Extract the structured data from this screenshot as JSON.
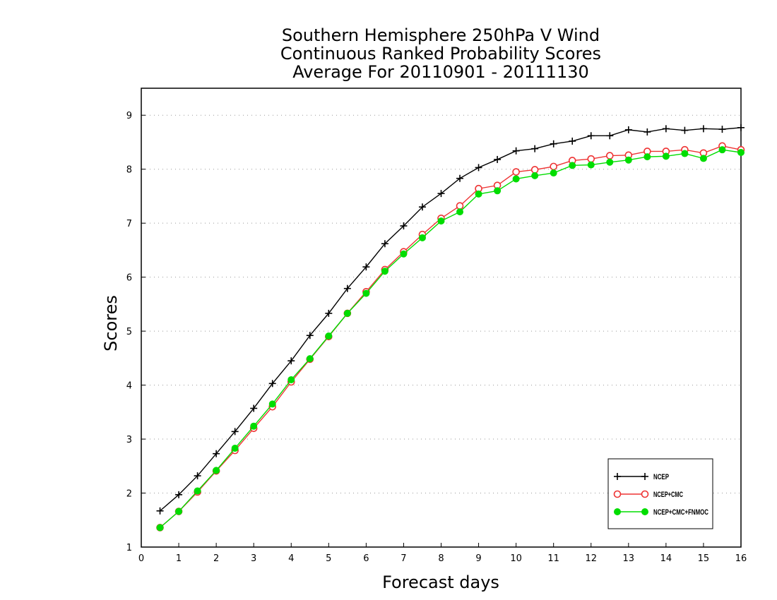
{
  "chart_data": {
    "type": "line",
    "title": [
      "Southern Hemisphere 250hPa V Wind",
      "Continuous Ranked Probability Scores",
      "Average For 20110901 - 20111130"
    ],
    "xlabel": "Forecast days",
    "ylabel": "Scores",
    "xlim": [
      0,
      16
    ],
    "ylim": [
      1,
      9.5
    ],
    "x_ticks": [
      0,
      1,
      2,
      3,
      4,
      5,
      6,
      7,
      8,
      9,
      10,
      11,
      12,
      13,
      14,
      15,
      16
    ],
    "y_ticks": [
      1,
      2,
      3,
      4,
      5,
      6,
      7,
      8,
      9
    ],
    "grid": "horizontal dotted",
    "legend_position": "bottom-right",
    "x": [
      0.5,
      1,
      1.5,
      2,
      2.5,
      3,
      3.5,
      4,
      4.5,
      5,
      5.5,
      6,
      6.5,
      7,
      7.5,
      8,
      8.5,
      9,
      9.5,
      10,
      10.5,
      11,
      11.5,
      12,
      12.5,
      13,
      13.5,
      14,
      14.5,
      15,
      15.5,
      16
    ],
    "series": [
      {
        "name": "NCEP",
        "color": "#000000",
        "marker": "plus",
        "values": [
          1.67,
          1.97,
          2.32,
          2.73,
          3.14,
          3.57,
          4.03,
          4.45,
          4.92,
          5.33,
          5.79,
          6.19,
          6.62,
          6.95,
          7.3,
          7.55,
          7.83,
          8.03,
          8.18,
          8.34,
          8.38,
          8.47,
          8.52,
          8.62,
          8.62,
          8.73,
          8.69,
          8.75,
          8.72,
          8.75,
          8.74,
          8.77
        ]
      },
      {
        "name": "NCEP+CMC",
        "color": "#ee3333",
        "marker": "open-circle",
        "values": [
          1.36,
          1.66,
          2.02,
          2.41,
          2.79,
          3.2,
          3.6,
          4.06,
          4.48,
          4.9,
          5.33,
          5.73,
          6.14,
          6.47,
          6.79,
          7.09,
          7.32,
          7.64,
          7.7,
          7.95,
          7.99,
          8.05,
          8.16,
          8.19,
          8.25,
          8.26,
          8.33,
          8.33,
          8.36,
          8.3,
          8.43,
          8.36
        ]
      },
      {
        "name": "NCEP+CMC+FNMOC",
        "color": "#00dd00",
        "marker": "filled-circle",
        "values": [
          1.36,
          1.66,
          2.04,
          2.42,
          2.83,
          3.24,
          3.65,
          4.1,
          4.49,
          4.91,
          5.33,
          5.7,
          6.11,
          6.43,
          6.73,
          7.04,
          7.21,
          7.54,
          7.6,
          7.82,
          7.88,
          7.93,
          8.07,
          8.08,
          8.13,
          8.17,
          8.23,
          8.24,
          8.29,
          8.2,
          8.36,
          8.31
        ]
      }
    ]
  }
}
